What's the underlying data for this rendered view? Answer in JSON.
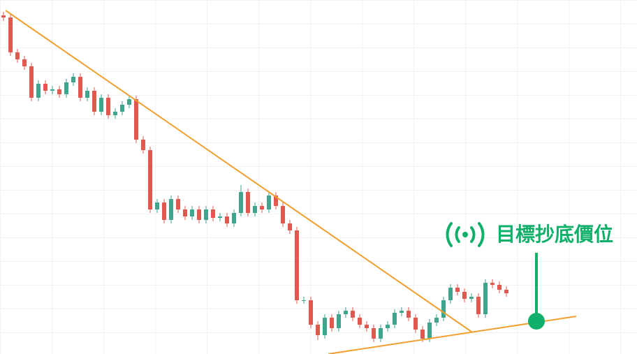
{
  "chart_data": {
    "type": "candlestick",
    "annotation": "目標抄底價位",
    "ylim": [
      0,
      507
    ],
    "up_color": "#3fa58e",
    "down_color": "#e0584f",
    "open": [
      485,
      482,
      432,
      422,
      412,
      367,
      387,
      377,
      379,
      372,
      389,
      397,
      367,
      377,
      347,
      367,
      342,
      347,
      357,
      365,
      307,
      292,
      207,
      217,
      192,
      222,
      207,
      197,
      207,
      192,
      207,
      195,
      197,
      187,
      202,
      232,
      202,
      212,
      207,
      227,
      212,
      187,
      177,
      77,
      77,
      42,
      27,
      52,
      37,
      57,
      62,
      52,
      42,
      37,
      22,
      37,
      42,
      59,
      62,
      52,
      35,
      22,
      45,
      52,
      77,
      95,
      89,
      79,
      82,
      57,
      102,
      99,
      92
    ],
    "high": [
      490,
      487,
      437,
      427,
      417,
      392,
      392,
      384,
      384,
      394,
      402,
      402,
      382,
      382,
      372,
      372,
      352,
      362,
      370,
      370,
      312,
      297,
      222,
      222,
      227,
      227,
      212,
      212,
      212,
      212,
      212,
      202,
      202,
      207,
      242,
      237,
      217,
      217,
      232,
      232,
      217,
      192,
      182,
      82,
      82,
      47,
      57,
      57,
      62,
      67,
      67,
      57,
      47,
      42,
      42,
      47,
      64,
      67,
      67,
      57,
      40,
      50,
      57,
      82,
      100,
      100,
      94,
      87,
      87,
      107,
      107,
      104,
      97
    ],
    "low": [
      477,
      427,
      417,
      407,
      362,
      362,
      372,
      372,
      367,
      367,
      384,
      362,
      362,
      342,
      342,
      337,
      337,
      342,
      352,
      302,
      287,
      202,
      202,
      187,
      187,
      202,
      192,
      192,
      187,
      187,
      190,
      190,
      182,
      182,
      197,
      197,
      197,
      202,
      202,
      207,
      182,
      172,
      72,
      72,
      37,
      20,
      22,
      32,
      32,
      52,
      47,
      37,
      32,
      17,
      17,
      32,
      37,
      54,
      47,
      30,
      17,
      17,
      40,
      47,
      72,
      84,
      74,
      74,
      52,
      52,
      94,
      87,
      82
    ],
    "close": [
      482,
      432,
      422,
      412,
      367,
      387,
      377,
      379,
      372,
      389,
      397,
      367,
      377,
      347,
      367,
      342,
      347,
      357,
      365,
      307,
      292,
      207,
      217,
      192,
      222,
      207,
      197,
      207,
      192,
      207,
      195,
      197,
      187,
      202,
      232,
      202,
      212,
      207,
      227,
      212,
      187,
      177,
      77,
      77,
      42,
      27,
      52,
      37,
      57,
      62,
      52,
      42,
      37,
      22,
      37,
      42,
      59,
      62,
      52,
      35,
      22,
      45,
      52,
      77,
      95,
      89,
      79,
      82,
      57,
      102,
      99,
      92,
      87
    ]
  }
}
